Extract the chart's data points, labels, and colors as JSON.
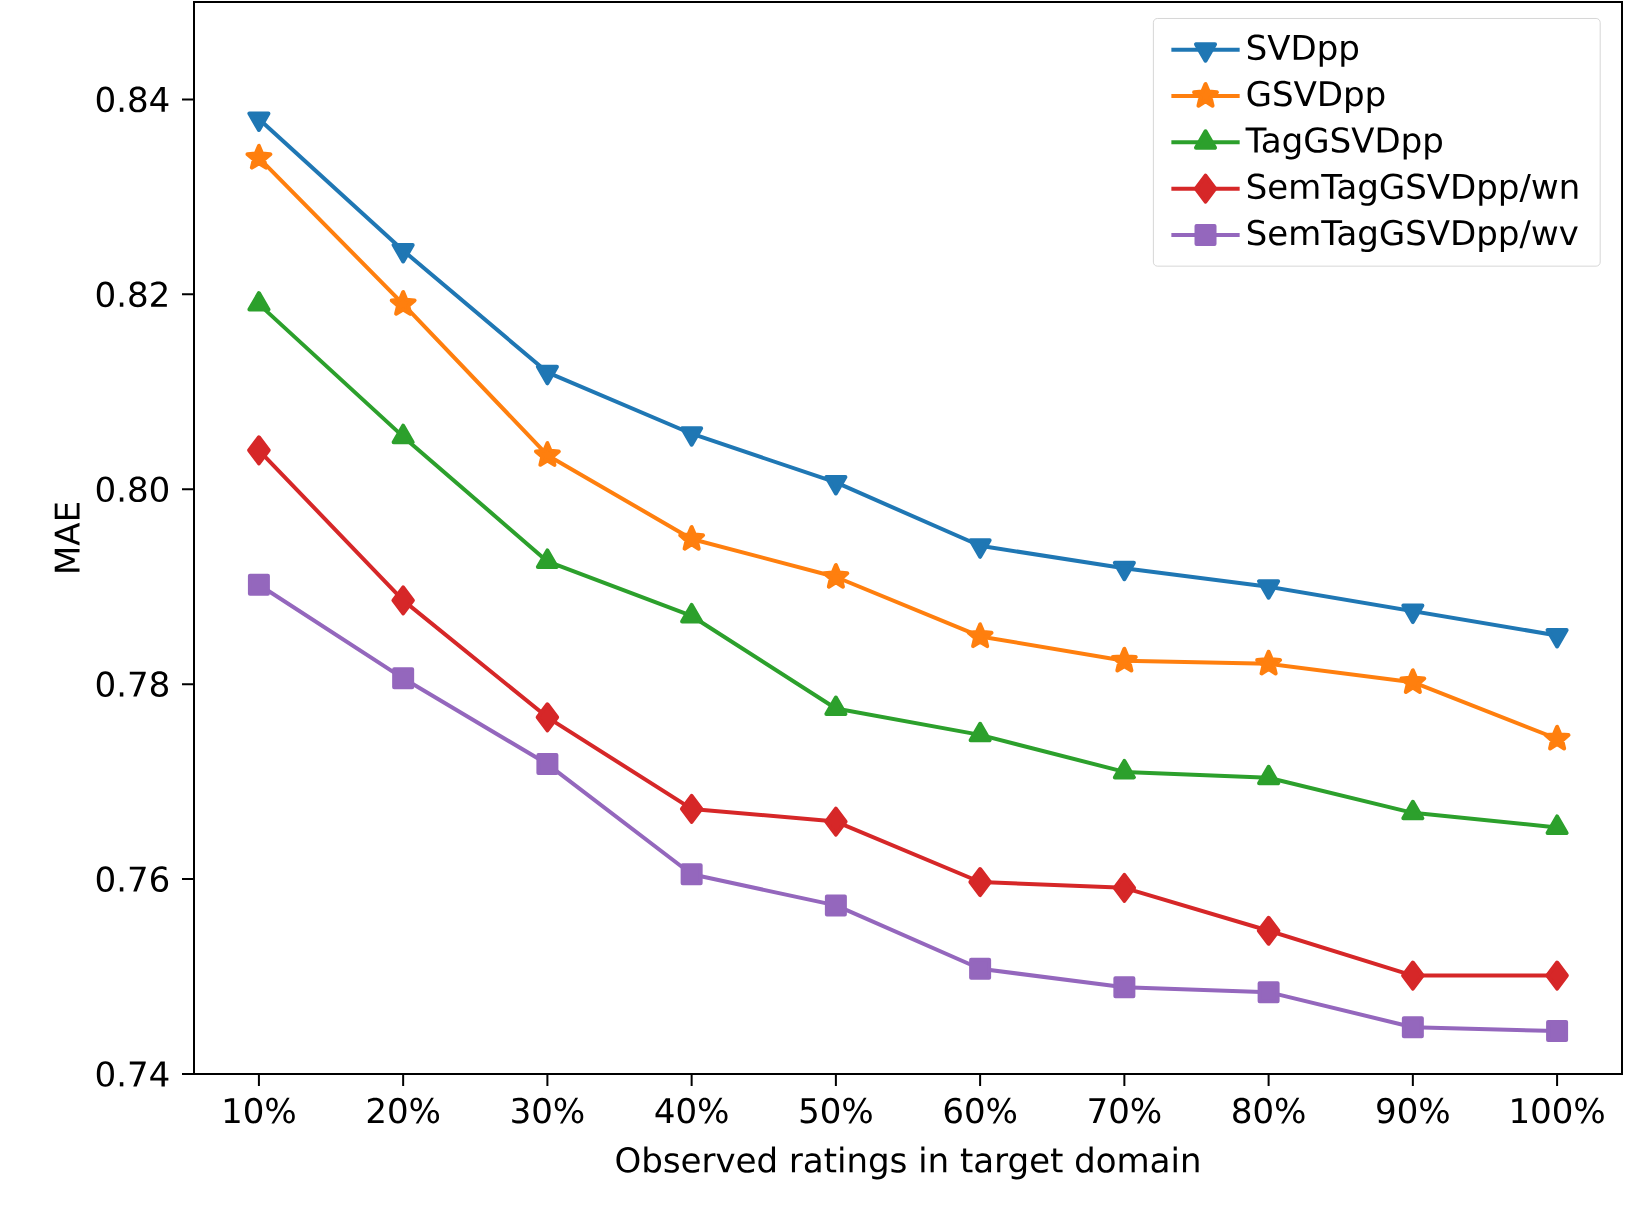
{
  "chart_data": {
    "type": "line",
    "xlabel": "Observed ratings in target domain",
    "ylabel": "MAE",
    "categories": [
      "10%",
      "20%",
      "30%",
      "40%",
      "50%",
      "60%",
      "70%",
      "80%",
      "90%",
      "100%"
    ],
    "ylim": [
      0.74,
      0.85
    ],
    "yticks": [
      0.74,
      0.76,
      0.78,
      {
        "value": 0.8,
        "label": "0.80"
      },
      0.82,
      0.84
    ],
    "series": [
      {
        "name": "SVDpp",
        "color": "#1f77b4",
        "marker": "triangle-down",
        "values": [
          0.838,
          0.8245,
          0.812,
          0.8057,
          0.8007,
          0.7942,
          0.7919,
          0.79,
          0.7875,
          0.785
        ]
      },
      {
        "name": "GSVDpp",
        "color": "#ff7f0e",
        "marker": "star",
        "values": [
          0.834,
          0.819,
          0.8035,
          0.7949,
          0.791,
          0.7849,
          0.7824,
          0.7821,
          0.7802,
          0.7744
        ]
      },
      {
        "name": "TagGSVDpp",
        "color": "#2ca02c",
        "marker": "triangle",
        "values": [
          0.819,
          0.8054,
          0.7926,
          0.787,
          0.7775,
          0.7748,
          0.771,
          0.7704,
          0.7668,
          0.7653
        ]
      },
      {
        "name": "SemTagGSVDpp/wn",
        "color": "#d62728",
        "marker": "diamond",
        "values": [
          0.804,
          0.7886,
          0.7766,
          0.7672,
          0.7659,
          0.7597,
          0.7591,
          0.7547,
          0.7501,
          0.7501
        ]
      },
      {
        "name": "SemTagGSVDpp/wv",
        "color": "#9467bd",
        "marker": "square",
        "values": [
          0.7902,
          0.7806,
          0.7718,
          0.7605,
          0.7573,
          0.7508,
          0.7489,
          0.7484,
          0.7448,
          0.7444
        ]
      }
    ],
    "line_style": "solid",
    "grid": false,
    "legend": "top right"
  }
}
